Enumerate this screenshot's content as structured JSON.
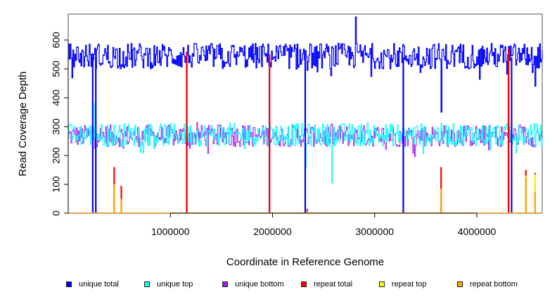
{
  "chart_data": {
    "type": "line",
    "title": "",
    "xlabel": "Coordinate in Reference Genome",
    "ylabel": "Read Coverage Depth",
    "xlim": [
      0,
      4640000
    ],
    "ylim": [
      0,
      690
    ],
    "x_ticks": [
      1000000,
      2000000,
      3000000,
      4000000
    ],
    "x_tick_labels": [
      "1000000",
      "2000000",
      "3000000",
      "4000000"
    ],
    "y_ticks": [
      0,
      100,
      200,
      300,
      400,
      500,
      600
    ],
    "y_tick_labels": [
      "0",
      "100",
      "200",
      "300",
      "400",
      "500",
      "600"
    ],
    "grid": false,
    "legend_position": "bottom",
    "colors": {
      "unique_total": "#0000ff",
      "unique_top": "#00ffff",
      "unique_bottom": "#a020f0",
      "repeat_total": "#ff0000",
      "repeat_top": "#ffff00",
      "repeat_bottom": "#ffa500"
    },
    "series": [
      {
        "name": "unique total",
        "color": "#0000ff",
        "base_range": [
          480,
          600
        ],
        "approx_mean": 545,
        "dips_to_zero_at": [
          240000,
          270000,
          1160000,
          1970000,
          2320000,
          3280000,
          4310000,
          4340000
        ],
        "notable_points": [
          [
            2810000,
            680
          ],
          [
            3650000,
            350
          ],
          [
            4570000,
            440
          ]
        ]
      },
      {
        "name": "unique top",
        "color": "#00ffff",
        "base_range": [
          220,
          330
        ],
        "approx_mean": 272,
        "notable_points": [
          [
            260000,
            380
          ],
          [
            2580000,
            105
          ],
          [
            2320000,
            160
          ]
        ]
      },
      {
        "name": "unique bottom",
        "color": "#a020f0",
        "base_range": [
          210,
          330
        ],
        "approx_mean": 268
      },
      {
        "name": "repeat total",
        "color": "#ff0000",
        "spikes": [
          [
            450000,
            160
          ],
          [
            520000,
            95
          ],
          [
            2340000,
            15
          ],
          [
            3650000,
            160
          ],
          [
            4480000,
            150
          ],
          [
            4570000,
            140
          ],
          [
            1160000,
            560
          ],
          [
            1970000,
            550
          ],
          [
            4310000,
            570
          ]
        ]
      },
      {
        "name": "repeat top",
        "color": "#ffff00",
        "spikes": [
          [
            450000,
            100
          ],
          [
            4480000,
            130
          ],
          [
            4570000,
            135
          ]
        ]
      },
      {
        "name": "repeat bottom",
        "color": "#ffa500",
        "spikes": [
          [
            450000,
            100
          ],
          [
            520000,
            50
          ],
          [
            2340000,
            8
          ],
          [
            3650000,
            85
          ],
          [
            4480000,
            125
          ],
          [
            4570000,
            75
          ]
        ]
      }
    ]
  },
  "legend": {
    "items": [
      {
        "label": "unique total",
        "color": "#0000ff"
      },
      {
        "label": "unique top",
        "color": "#00ffff"
      },
      {
        "label": "unique bottom",
        "color": "#a020f0"
      },
      {
        "label": "repeat total",
        "color": "#ff0000"
      },
      {
        "label": "repeat top",
        "color": "#ffff00"
      },
      {
        "label": "repeat bottom",
        "color": "#ffa500"
      }
    ]
  }
}
